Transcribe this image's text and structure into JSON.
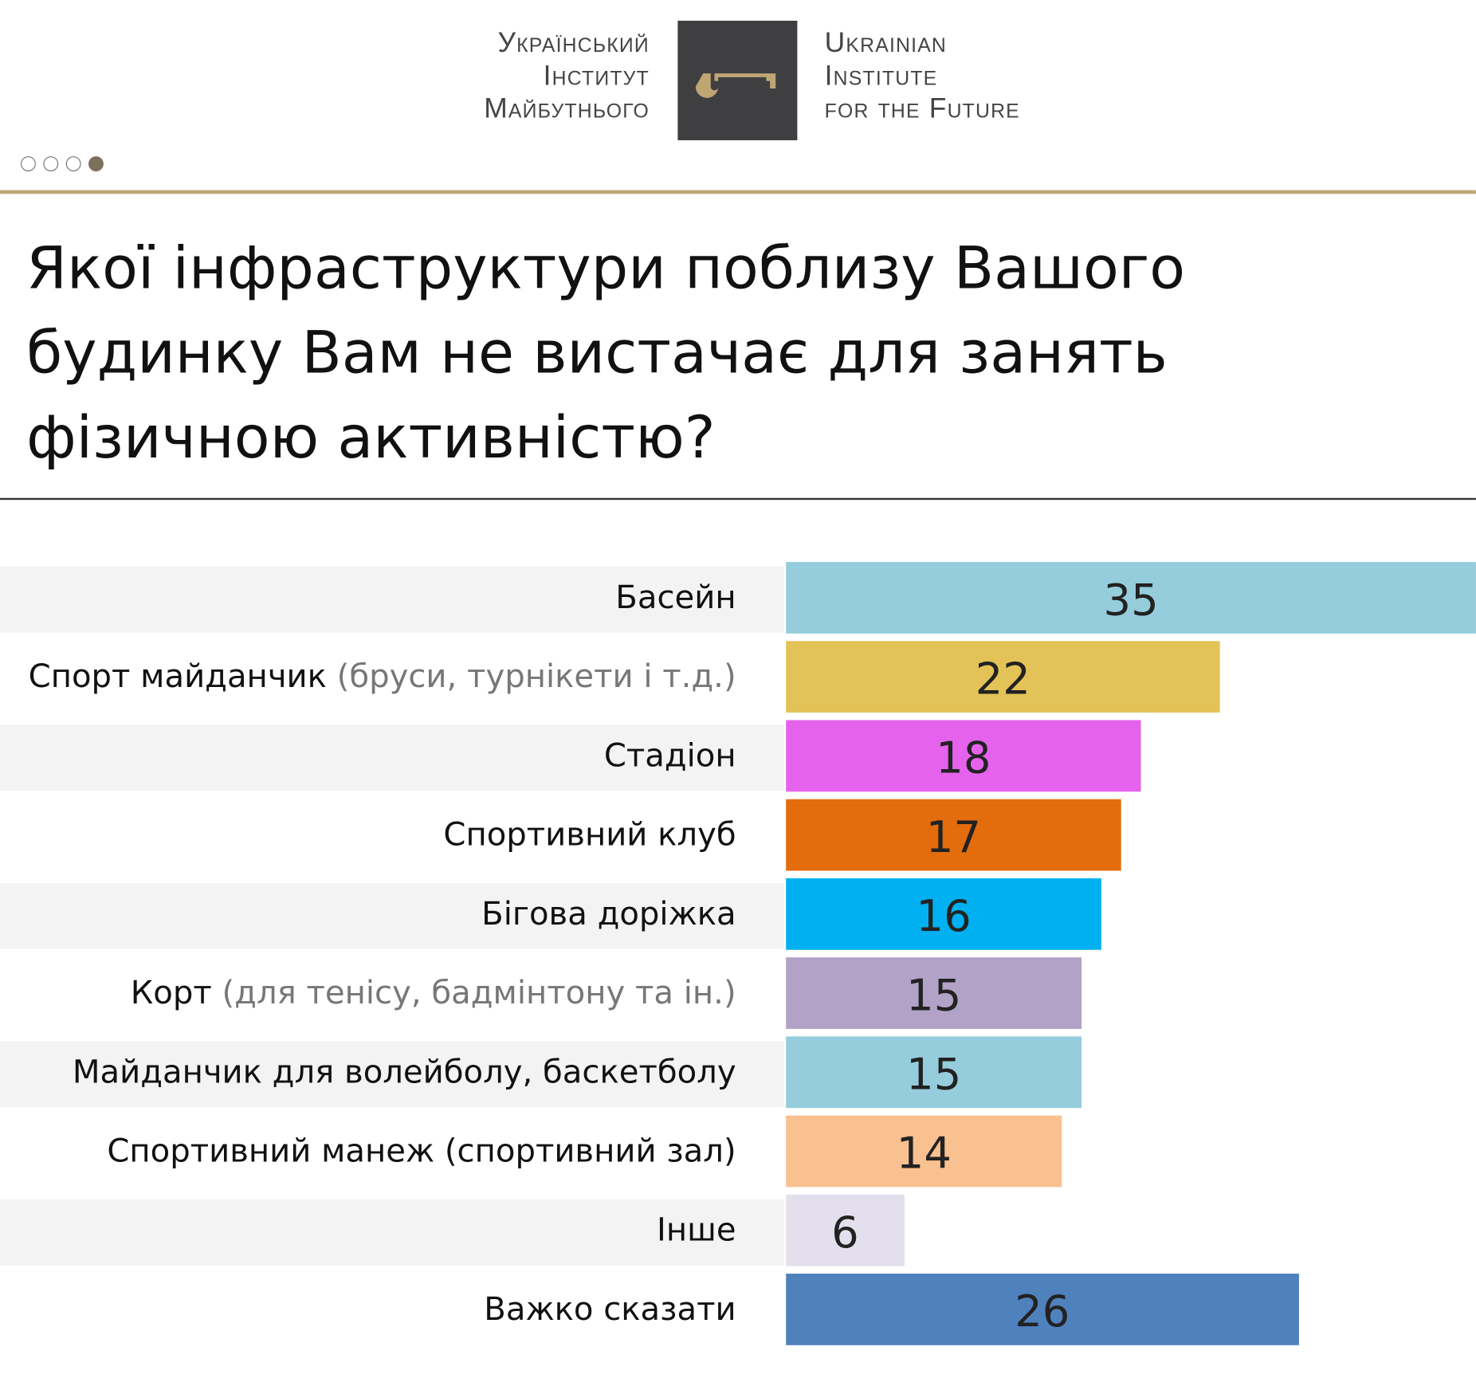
{
  "logo": {
    "ua_lines": [
      "Український",
      "Інститут",
      "Майбутнього"
    ],
    "en_lines": [
      "Ukrainian",
      "Institute",
      "for the Future"
    ],
    "key_color": "#c0a574",
    "box_color": "#3f3f41"
  },
  "pager": {
    "count": 4,
    "active": 4
  },
  "chart_data": {
    "type": "bar",
    "orientation": "horizontal",
    "title": "Якої інфраструктури поблизу Вашого будинку Вам не вистачає для занять фізичною активністю?",
    "categories": [
      {
        "label": "Басейн",
        "note": ""
      },
      {
        "label": "Спорт майданчик",
        "note": "(бруси, турнікети і т.д.)"
      },
      {
        "label": "Стадіон",
        "note": ""
      },
      {
        "label": "Спортивний клуб",
        "note": ""
      },
      {
        "label": "Бігова доріжка",
        "note": ""
      },
      {
        "label": "Корт",
        "note": "(для тенісу, бадмінтону та ін.)"
      },
      {
        "label": "Майданчик для волейболу, баскетболу",
        "note": ""
      },
      {
        "label": "Спортивний манеж (спортивний зал)",
        "note": ""
      },
      {
        "label": "Інше",
        "note": ""
      },
      {
        "label": "Важко сказати",
        "note": ""
      }
    ],
    "values": [
      35,
      22,
      18,
      17,
      16,
      15,
      15,
      14,
      6,
      26
    ],
    "colors": [
      "#96cddc",
      "#e3c257",
      "#e563ec",
      "#e36c0d",
      "#00b0f0",
      "#b2a2c7",
      "#96cddc",
      "#f9c090",
      "#e3dfec",
      "#4f81bd"
    ],
    "xlim": [
      0,
      35
    ],
    "grid": false,
    "legend": "none"
  }
}
